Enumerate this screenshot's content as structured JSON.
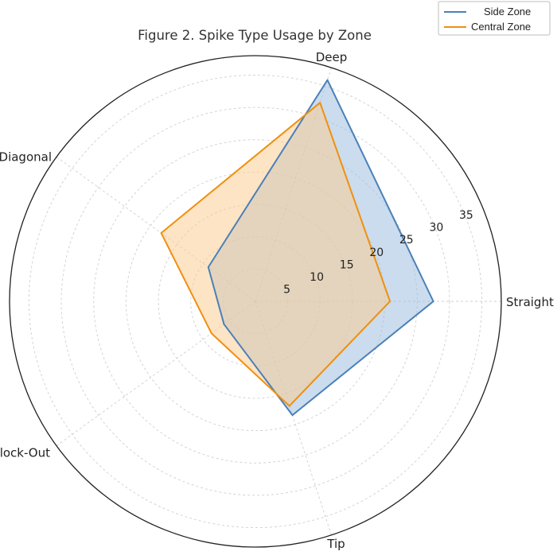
{
  "chart_data": {
    "type": "radar",
    "title": "Figure 2. Spike Type Usage by Zone",
    "categories": [
      "Straight",
      "Deep",
      "Diagonal",
      "Block-Out",
      "Tip"
    ],
    "rlim": [
      0,
      38
    ],
    "rticks": [
      5,
      10,
      15,
      20,
      25,
      30,
      35
    ],
    "grid": true,
    "legend_position": "top-right",
    "series": [
      {
        "name": "Side Zone",
        "values": [
          27.5,
          36.0,
          9.0,
          6.0,
          18.5
        ],
        "color": "#4a80b8",
        "fill": "#9ec0de"
      },
      {
        "name": "Central Zone",
        "values": [
          20.8,
          32.3,
          18.0,
          8.4,
          17.0
        ],
        "color": "#f0900f",
        "fill": "#f9cd96"
      }
    ]
  }
}
